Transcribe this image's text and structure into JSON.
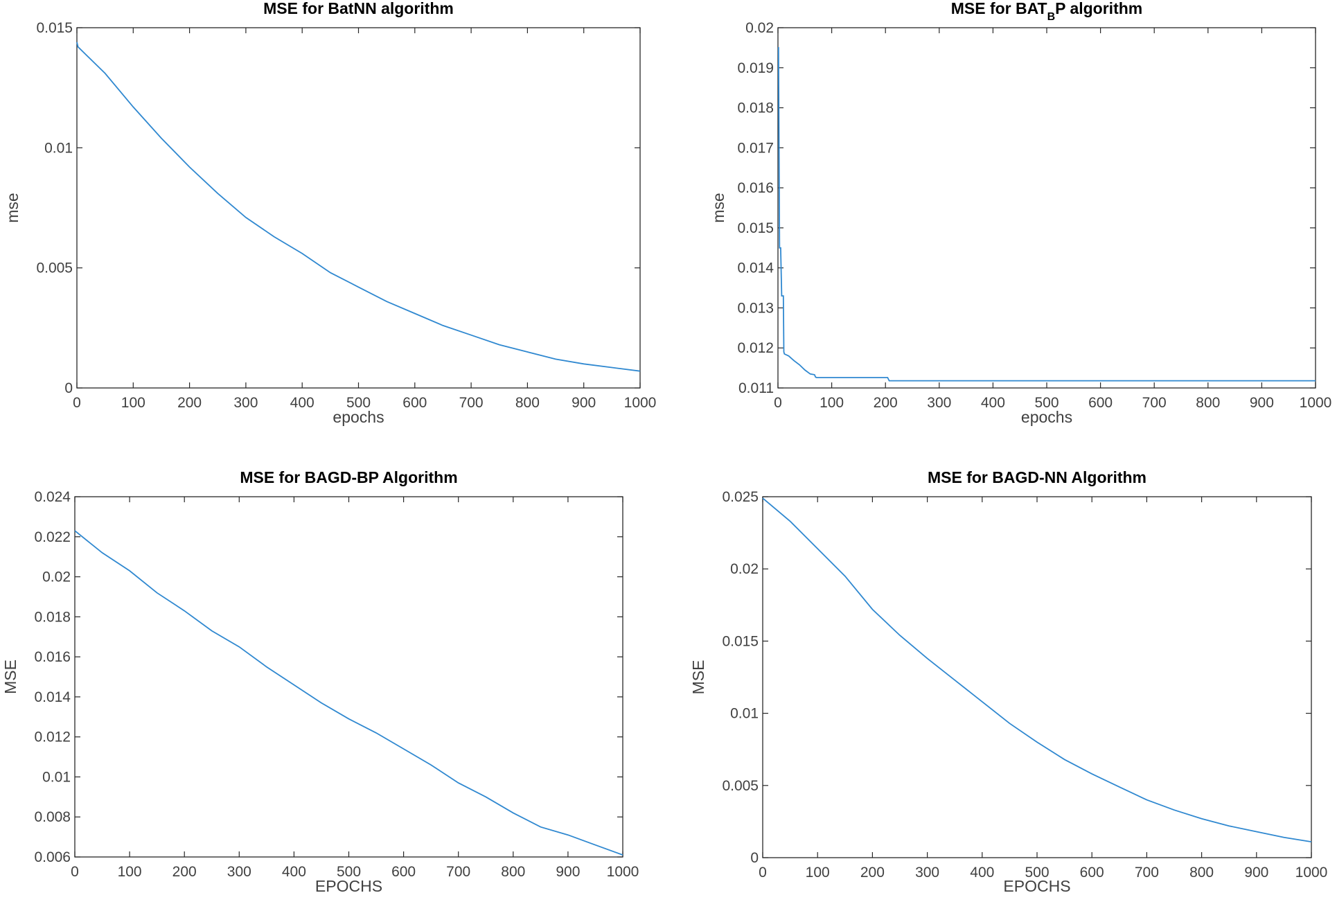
{
  "chart_data": [
    {
      "type": "line",
      "title": "MSE for BatNN algorithm",
      "xlabel": "epochs",
      "ylabel": "mse",
      "xlim": [
        0,
        1000
      ],
      "ylim": [
        0,
        0.015
      ],
      "xticks": [
        "0",
        "100",
        "200",
        "300",
        "400",
        "500",
        "600",
        "700",
        "800",
        "900",
        "1000"
      ],
      "yticks": [
        "0",
        "0.005",
        "0.01",
        "0.015"
      ],
      "color": "#2f88d0",
      "series": [
        {
          "name": "mse",
          "x": [
            0,
            2,
            50,
            100,
            150,
            200,
            250,
            300,
            350,
            400,
            450,
            500,
            550,
            600,
            650,
            700,
            750,
            800,
            850,
            900,
            950,
            1000
          ],
          "y": [
            0.0144,
            0.0142,
            0.0131,
            0.0117,
            0.0104,
            0.0092,
            0.0081,
            0.0071,
            0.0063,
            0.0056,
            0.0048,
            0.0042,
            0.0036,
            0.0031,
            0.0026,
            0.0022,
            0.0018,
            0.0015,
            0.0012,
            0.001,
            0.00085,
            0.0007
          ]
        }
      ]
    },
    {
      "type": "line",
      "title": "MSE for BAT",
      "title_sub": "B",
      "title_rest": "P algorithm",
      "xlabel": "epochs",
      "ylabel": "mse",
      "xlim": [
        0,
        1000
      ],
      "ylim": [
        0.011,
        0.02
      ],
      "xticks": [
        "0",
        "100",
        "200",
        "300",
        "400",
        "500",
        "600",
        "700",
        "800",
        "900",
        "1000"
      ],
      "yticks": [
        "0.011",
        "0.012",
        "0.013",
        "0.014",
        "0.015",
        "0.016",
        "0.017",
        "0.018",
        "0.019",
        "0.02"
      ],
      "color": "#2f88d0",
      "series": [
        {
          "name": "mse",
          "x": [
            0,
            1,
            3,
            5,
            7,
            8,
            10,
            11,
            12,
            20,
            30,
            40,
            50,
            60,
            68,
            70,
            72,
            200,
            204,
            207,
            1000
          ],
          "y": [
            0.0195,
            0.0195,
            0.0145,
            0.0145,
            0.0133,
            0.0133,
            0.0133,
            0.0119,
            0.01185,
            0.0118,
            0.01168,
            0.01158,
            0.01145,
            0.01135,
            0.01133,
            0.01127,
            0.01126,
            0.01126,
            0.01126,
            0.01118,
            0.01118
          ]
        }
      ]
    },
    {
      "type": "line",
      "title": "MSE for BAGD-BP Algorithm",
      "xlabel": "EPOCHS",
      "ylabel": "MSE",
      "xlim": [
        0,
        1000
      ],
      "ylim": [
        0.006,
        0.024
      ],
      "xticks": [
        "0",
        "100",
        "200",
        "300",
        "400",
        "500",
        "600",
        "700",
        "800",
        "900",
        "1000"
      ],
      "yticks": [
        "0.006",
        "0.008",
        "0.01",
        "0.012",
        "0.014",
        "0.016",
        "0.018",
        "0.02",
        "0.022",
        "0.024"
      ],
      "color": "#2f88d0",
      "series": [
        {
          "name": "MSE",
          "x": [
            0,
            50,
            100,
            150,
            200,
            250,
            300,
            350,
            400,
            450,
            500,
            550,
            600,
            650,
            700,
            750,
            800,
            850,
            900,
            950,
            1000
          ],
          "y": [
            0.0223,
            0.0212,
            0.0203,
            0.0192,
            0.0183,
            0.0173,
            0.0165,
            0.0155,
            0.0146,
            0.0137,
            0.0129,
            0.0122,
            0.0114,
            0.0106,
            0.0097,
            0.009,
            0.0082,
            0.0075,
            0.0071,
            0.0066,
            0.0061
          ]
        }
      ]
    },
    {
      "type": "line",
      "title": "MSE for BAGD-NN Algorithm",
      "xlabel": "EPOCHS",
      "ylabel": "MSE",
      "xlim": [
        0,
        1000
      ],
      "ylim": [
        0,
        0.025
      ],
      "xticks": [
        "0",
        "100",
        "200",
        "300",
        "400",
        "500",
        "600",
        "700",
        "800",
        "900",
        "1000"
      ],
      "yticks": [
        "0",
        "0.005",
        "0.01",
        "0.015",
        "0.02",
        "0.025"
      ],
      "color": "#2f88d0",
      "series": [
        {
          "name": "MSE",
          "x": [
            0,
            50,
            100,
            150,
            200,
            250,
            300,
            350,
            400,
            450,
            500,
            550,
            600,
            650,
            700,
            750,
            800,
            850,
            900,
            950,
            1000
          ],
          "y": [
            0.0249,
            0.0233,
            0.0214,
            0.0195,
            0.0172,
            0.0154,
            0.0138,
            0.0123,
            0.0108,
            0.0093,
            0.008,
            0.0068,
            0.0058,
            0.0049,
            0.004,
            0.0033,
            0.0027,
            0.0022,
            0.0018,
            0.0014,
            0.0011
          ]
        }
      ]
    }
  ]
}
